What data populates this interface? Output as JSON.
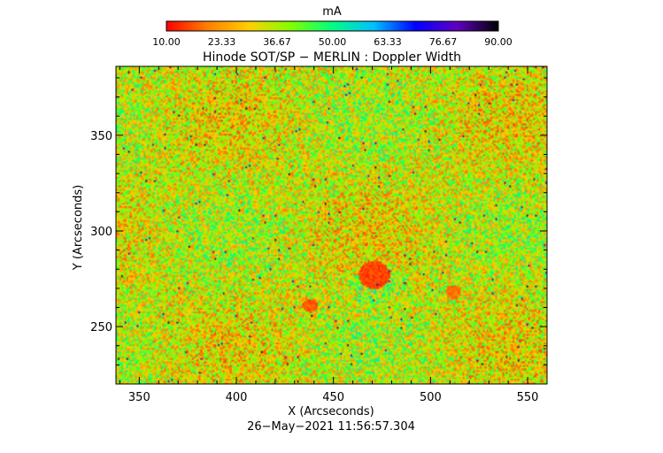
{
  "colorbar": {
    "unit": "mA",
    "ticks": [
      "10.00",
      "23.33",
      "36.67",
      "50.00",
      "63.33",
      "76.67",
      "90.00"
    ],
    "range": [
      10,
      90
    ],
    "colormap": [
      "#ff0000",
      "#ff8000",
      "#ffd000",
      "#80ff00",
      "#00ff80",
      "#00c0ff",
      "#0000ff",
      "#6000c0",
      "#000000"
    ]
  },
  "chart_data": {
    "type": "heatmap",
    "title": "Hinode SOT/SP − MERLIN : Doppler Width",
    "xlabel": "X (Arcseconds)",
    "ylabel": "Y (Arcseconds)",
    "xlim": [
      338,
      560
    ],
    "ylim": [
      220,
      386
    ],
    "xticks": [
      350,
      400,
      450,
      500,
      550
    ],
    "yticks": [
      250,
      300,
      350
    ],
    "zlim": [
      10,
      90
    ],
    "zunit": "mA",
    "features": [
      {
        "kind": "sunspot",
        "x": 471,
        "y": 277,
        "value": 12
      },
      {
        "kind": "pore",
        "x": 438,
        "y": 261,
        "value": 14
      },
      {
        "kind": "pore",
        "x": 512,
        "y": 268,
        "value": 16
      }
    ]
  },
  "timestamp": "26−May−2021 11:56:57.304"
}
